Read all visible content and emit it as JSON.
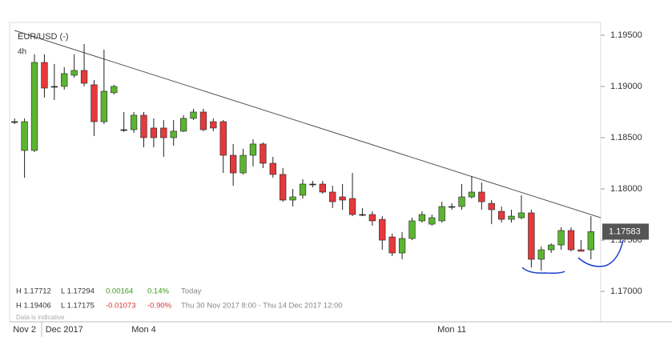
{
  "chart_data": {
    "type": "candlestick",
    "title": "EUR/USD (-)",
    "interval": "4h",
    "categories": [
      null,
      "Nov 2",
      null,
      null,
      null,
      "Dec 2017",
      null,
      null,
      null,
      null,
      null,
      null,
      null,
      "Mon 4",
      null,
      null,
      null,
      null,
      null,
      null,
      null,
      null,
      null,
      null,
      null,
      null,
      null,
      null,
      null,
      null,
      null,
      null,
      null,
      null,
      null,
      null,
      null,
      null,
      null,
      null,
      null,
      null,
      null,
      null,
      "Mon 11",
      null,
      null,
      null,
      null,
      null,
      null,
      null,
      null,
      null,
      null,
      null,
      null,
      null,
      null
    ],
    "open": [
      1.18656,
      1.18375,
      1.18375,
      1.19234,
      1.19,
      1.19,
      1.19109,
      1.19156,
      1.19016,
      1.18656,
      1.18938,
      1.18578,
      1.18578,
      1.18719,
      1.18594,
      1.18594,
      1.185,
      1.18563,
      1.18688,
      1.1875,
      1.18656,
      1.18656,
      1.18328,
      1.18156,
      1.18328,
      1.18438,
      1.1825,
      1.18141,
      1.17891,
      1.17938,
      1.18047,
      1.18047,
      1.17969,
      1.17922,
      1.17906,
      1.1775,
      1.1775,
      1.17703,
      1.17531,
      1.17375,
      1.17516,
      1.17688,
      1.17656,
      1.17688,
      1.17828,
      1.17828,
      1.17922,
      1.17969,
      1.17859,
      1.17781,
      1.17703,
      1.17719,
      1.17766,
      1.17313,
      1.17406,
      1.17453,
      1.17594,
      1.17406,
      1.17406
    ],
    "high": [
      1.18688,
      1.18688,
      1.19313,
      1.19313,
      1.19219,
      1.19188,
      1.19313,
      1.19414,
      1.19063,
      1.19359,
      1.19016,
      1.1875,
      1.1875,
      1.1875,
      1.18688,
      1.18672,
      1.18672,
      1.18719,
      1.18781,
      1.18781,
      1.18688,
      1.18672,
      1.18438,
      1.18391,
      1.18484,
      1.18453,
      1.18313,
      1.18203,
      1.18,
      1.18094,
      1.18078,
      1.18078,
      1.18031,
      1.18047,
      1.18156,
      1.17813,
      1.17781,
      1.17734,
      1.17563,
      1.17578,
      1.17719,
      1.17781,
      1.1775,
      1.17875,
      1.17859,
      1.18047,
      1.18125,
      1.18063,
      1.17891,
      1.17828,
      1.17797,
      1.17938,
      1.17797,
      1.17438,
      1.17469,
      1.17625,
      1.17625,
      1.175,
      1.17734
    ],
    "low": [
      1.18633,
      1.18109,
      1.18359,
      1.18891,
      1.18867,
      1.18969,
      1.19086,
      1.19,
      1.18516,
      1.18633,
      1.18922,
      1.18555,
      1.18547,
      1.18406,
      1.18406,
      1.18313,
      1.18422,
      1.18555,
      1.18672,
      1.18563,
      1.18563,
      1.18156,
      1.18031,
      1.18141,
      1.18219,
      1.18203,
      1.18109,
      1.17875,
      1.17828,
      1.17906,
      1.18016,
      1.17953,
      1.17813,
      1.17797,
      1.17734,
      1.17734,
      1.17641,
      1.17406,
      1.17344,
      1.17313,
      1.175,
      1.17672,
      1.17641,
      1.17672,
      1.17797,
      1.17797,
      1.17906,
      1.17797,
      1.17656,
      1.17672,
      1.17672,
      1.17703,
      1.17234,
      1.17203,
      1.17375,
      1.17406,
      1.17391,
      1.17391,
      1.17313
    ],
    "close": [
      1.18656,
      1.18656,
      1.19234,
      1.18984,
      1.19,
      1.19125,
      1.19156,
      1.19031,
      1.18656,
      1.18953,
      1.19,
      1.18578,
      1.18719,
      1.185,
      1.185,
      1.185,
      1.18563,
      1.18688,
      1.1875,
      1.18578,
      1.18594,
      1.18328,
      1.18156,
      1.18328,
      1.18438,
      1.1825,
      1.18141,
      1.17891,
      1.17922,
      1.18047,
      1.18047,
      1.17969,
      1.17875,
      1.17891,
      1.1775,
      1.1775,
      1.17688,
      1.175,
      1.17375,
      1.17516,
      1.17688,
      1.1775,
      1.17719,
      1.17828,
      1.17828,
      1.17922,
      1.17969,
      1.17875,
      1.17797,
      1.17703,
      1.17734,
      1.17766,
      1.17313,
      1.17406,
      1.17453,
      1.17594,
      1.17406,
      1.17391,
      1.17583
    ],
    "up_color": "#5cb531",
    "down_color": "#e5393b",
    "outline_color": "#222222",
    "ylim": [
      1.16719,
      1.19609
    ],
    "yticks": [
      {
        "value": 1.195,
        "label": "1.19500"
      },
      {
        "value": 1.19,
        "label": "1.19000"
      },
      {
        "value": 1.185,
        "label": "1.18500"
      },
      {
        "value": 1.18,
        "label": "1.18000"
      },
      {
        "value": 1.175,
        "label": "1.17500"
      },
      {
        "value": 1.17,
        "label": "1.17000"
      }
    ]
  },
  "info_panel": {
    "today": {
      "high": "H 1.17712",
      "low": "L 1.17294",
      "change": "0.00164",
      "percent": "0.14%",
      "label": "Today"
    },
    "range": {
      "high": "H 1.19406",
      "low": "L 1.17175",
      "change": "-0.01073",
      "percent": "-0.90%",
      "label": "Thu 30 Nov 2017 8:00 - Thu 14 Dec 2017 12:00"
    },
    "note": "Data is indicative"
  }
}
